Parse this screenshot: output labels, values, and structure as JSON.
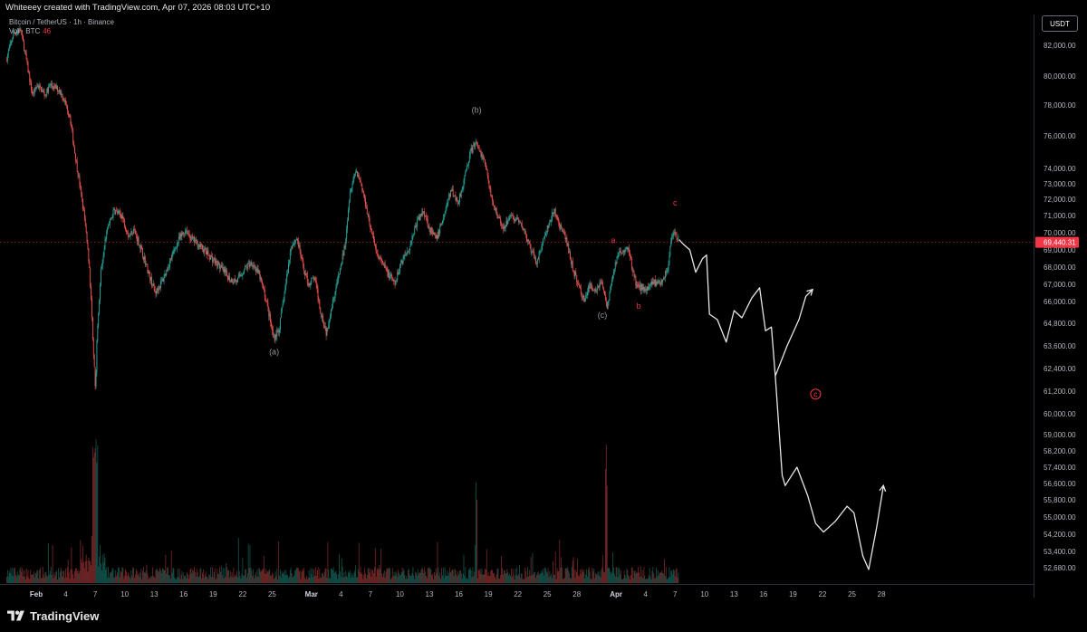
{
  "header": {
    "credit": "Whiteeey created with TradingView.com, Apr 07, 2026 08:03 UTC+10",
    "symbol": "Bitcoin / TetherUS · 1h · Binance",
    "volume_label": "Vol · BTC",
    "volume_value": "46",
    "currency": "USDT"
  },
  "footer": {
    "brand": "TradingView"
  },
  "colors": {
    "up": "#26a69a",
    "down": "#ef5350",
    "price_line": "#f23645",
    "projection": "#e6e6e6",
    "wave_gray": "#9598a1",
    "wave_red": "#f23645"
  },
  "chart_data": {
    "type": "candlestick",
    "interval": "1h",
    "symbol": "BTCUSDT",
    "exchange": "Binance",
    "current_price": 69440.31,
    "current_price_label": "69,440.31",
    "y_axis": {
      "ticks": [
        {
          "value": 82000,
          "label": "82,000.00"
        },
        {
          "value": 80000,
          "label": "80,000.00"
        },
        {
          "value": 78000,
          "label": "78,000.00"
        },
        {
          "value": 76000,
          "label": "76,000.00"
        },
        {
          "value": 74000,
          "label": "74,000.00"
        },
        {
          "value": 73000,
          "label": "73,000.00"
        },
        {
          "value": 72000,
          "label": "72,000.00"
        },
        {
          "value": 71000,
          "label": "71,000.00"
        },
        {
          "value": 70000,
          "label": "70,000.00"
        },
        {
          "value": 69000,
          "label": "69,000.00"
        },
        {
          "value": 68000,
          "label": "68,000.00"
        },
        {
          "value": 67000,
          "label": "67,000.00"
        },
        {
          "value": 66000,
          "label": "66,000.00"
        },
        {
          "value": 64800,
          "label": "64,800.00"
        },
        {
          "value": 63600,
          "label": "63,600.00"
        },
        {
          "value": 62400,
          "label": "62,400.00"
        },
        {
          "value": 61200,
          "label": "61,200.00"
        },
        {
          "value": 60000,
          "label": "60,000.00"
        },
        {
          "value": 59000,
          "label": "59,000.00"
        },
        {
          "value": 58200,
          "label": "58,200.00"
        },
        {
          "value": 57400,
          "label": "57,400.00"
        },
        {
          "value": 56600,
          "label": "56,600.00"
        },
        {
          "value": 55800,
          "label": "55,800.00"
        },
        {
          "value": 55000,
          "label": "55,000.00"
        },
        {
          "value": 54200,
          "label": "54,200.00"
        },
        {
          "value": 53400,
          "label": "53,400.00"
        },
        {
          "value": 52680,
          "label": "52,680.00"
        }
      ]
    },
    "x_axis": {
      "ticks": [
        {
          "day": 0,
          "label": "Feb",
          "major": true
        },
        {
          "day": 3,
          "label": "4"
        },
        {
          "day": 6,
          "label": "7"
        },
        {
          "day": 9,
          "label": "10"
        },
        {
          "day": 12,
          "label": "13"
        },
        {
          "day": 15,
          "label": "16"
        },
        {
          "day": 18,
          "label": "19"
        },
        {
          "day": 21,
          "label": "22"
        },
        {
          "day": 24,
          "label": "25"
        },
        {
          "day": 28,
          "label": "Mar",
          "major": true
        },
        {
          "day": 31,
          "label": "4"
        },
        {
          "day": 34,
          "label": "7"
        },
        {
          "day": 37,
          "label": "10"
        },
        {
          "day": 40,
          "label": "13"
        },
        {
          "day": 43,
          "label": "16"
        },
        {
          "day": 46,
          "label": "19"
        },
        {
          "day": 49,
          "label": "22"
        },
        {
          "day": 52,
          "label": "25"
        },
        {
          "day": 55,
          "label": "28"
        },
        {
          "day": 59,
          "label": "Apr",
          "major": true
        },
        {
          "day": 62,
          "label": "4"
        },
        {
          "day": 65,
          "label": "7"
        },
        {
          "day": 68,
          "label": "10"
        },
        {
          "day": 71,
          "label": "13"
        },
        {
          "day": 74,
          "label": "16"
        },
        {
          "day": 77,
          "label": "19"
        },
        {
          "day": 80,
          "label": "22"
        },
        {
          "day": 83,
          "label": "25"
        },
        {
          "day": 86,
          "label": "28"
        }
      ]
    },
    "price_path": [
      [
        -3,
        81000
      ],
      [
        -2.2,
        82800
      ],
      [
        -1.5,
        83000
      ],
      [
        -1,
        81300
      ],
      [
        -0.3,
        78700
      ],
      [
        0.2,
        79400
      ],
      [
        1,
        78700
      ],
      [
        1.5,
        79400
      ],
      [
        2.5,
        79000
      ],
      [
        3,
        78200
      ],
      [
        3.5,
        77300
      ],
      [
        4,
        75000
      ],
      [
        4.5,
        73000
      ],
      [
        5,
        70800
      ],
      [
        5.5,
        68000
      ],
      [
        5.8,
        64500
      ],
      [
        6.1,
        61200
      ],
      [
        6.3,
        64500
      ],
      [
        6.7,
        68000
      ],
      [
        7.2,
        70000
      ],
      [
        8,
        71300
      ],
      [
        8.8,
        71000
      ],
      [
        9.5,
        69800
      ],
      [
        10,
        70200
      ],
      [
        10.8,
        69000
      ],
      [
        11.6,
        67500
      ],
      [
        12.2,
        66500
      ],
      [
        13,
        67300
      ],
      [
        13.8,
        68500
      ],
      [
        14.5,
        69500
      ],
      [
        15.3,
        70200
      ],
      [
        15.8,
        69700
      ],
      [
        16.8,
        69200
      ],
      [
        17.8,
        68600
      ],
      [
        18.8,
        68000
      ],
      [
        19.8,
        67300
      ],
      [
        20.5,
        67200
      ],
      [
        21.3,
        67900
      ],
      [
        22,
        68300
      ],
      [
        22.8,
        67500
      ],
      [
        23.6,
        65800
      ],
      [
        24.2,
        64000
      ],
      [
        24.8,
        64500
      ],
      [
        25.4,
        66700
      ],
      [
        26,
        69200
      ],
      [
        26.6,
        69700
      ],
      [
        27.2,
        68100
      ],
      [
        27.8,
        67000
      ],
      [
        28.4,
        67400
      ],
      [
        29,
        65500
      ],
      [
        29.6,
        64300
      ],
      [
        30.2,
        65900
      ],
      [
        30.8,
        67300
      ],
      [
        31.5,
        69300
      ],
      [
        32,
        72500
      ],
      [
        32.6,
        73900
      ],
      [
        33,
        73300
      ],
      [
        33.5,
        72000
      ],
      [
        34.2,
        70000
      ],
      [
        34.8,
        68700
      ],
      [
        35.4,
        68100
      ],
      [
        36,
        67500
      ],
      [
        36.6,
        67000
      ],
      [
        37.2,
        68300
      ],
      [
        38,
        69100
      ],
      [
        38.8,
        70600
      ],
      [
        39.5,
        71300
      ],
      [
        40.2,
        70100
      ],
      [
        40.8,
        69600
      ],
      [
        41.6,
        71100
      ],
      [
        42.3,
        72600
      ],
      [
        43,
        71800
      ],
      [
        43.6,
        73200
      ],
      [
        44.2,
        74900
      ],
      [
        44.8,
        75600
      ],
      [
        45.3,
        74900
      ],
      [
        45.8,
        74300
      ],
      [
        46.3,
        72300
      ],
      [
        47,
        71000
      ],
      [
        47.6,
        70300
      ],
      [
        48.3,
        71000
      ],
      [
        49,
        70700
      ],
      [
        49.7,
        70200
      ],
      [
        50.3,
        69100
      ],
      [
        51,
        68300
      ],
      [
        51.6,
        69400
      ],
      [
        52.2,
        70400
      ],
      [
        52.8,
        71300
      ],
      [
        53.4,
        70300
      ],
      [
        54,
        69600
      ],
      [
        54.6,
        68100
      ],
      [
        55.2,
        67000
      ],
      [
        55.8,
        66100
      ],
      [
        56.4,
        66900
      ],
      [
        57,
        66700
      ],
      [
        57.6,
        67200
      ],
      [
        58.2,
        65700
      ],
      [
        58.6,
        67200
      ],
      [
        59.2,
        68600
      ],
      [
        59.7,
        68900
      ],
      [
        60.2,
        69200
      ],
      [
        60.6,
        68300
      ],
      [
        61.1,
        67000
      ],
      [
        61.6,
        66800
      ],
      [
        62.2,
        66800
      ],
      [
        62.8,
        67200
      ],
      [
        63.3,
        67000
      ],
      [
        63.8,
        67300
      ],
      [
        64.3,
        67800
      ],
      [
        64.7,
        69500
      ],
      [
        65,
        69900
      ],
      [
        65.4,
        69600
      ]
    ],
    "projection": [
      [
        65.4,
        69600
      ],
      [
        65.9,
        69300
      ],
      [
        66.5,
        69000
      ],
      [
        67.1,
        67700
      ],
      [
        67.8,
        68500
      ],
      [
        68.2,
        68700
      ],
      [
        68.5,
        65300
      ],
      [
        69.3,
        65000
      ],
      [
        70.2,
        63800
      ],
      [
        71,
        65500
      ],
      [
        71.8,
        65100
      ],
      [
        72.8,
        66200
      ],
      [
        73.6,
        66800
      ],
      [
        74.2,
        64400
      ],
      [
        74.8,
        64600
      ],
      [
        75.2,
        62000
      ],
      [
        76.4,
        63600
      ],
      [
        77.6,
        65000
      ],
      [
        78.3,
        66300
      ],
      [
        79,
        66700
      ]
    ],
    "projection_secondary": [
      [
        75.2,
        62000
      ],
      [
        75.9,
        57000
      ],
      [
        76.2,
        56500
      ],
      [
        77.4,
        57400
      ],
      [
        78.5,
        56000
      ],
      [
        79.3,
        54700
      ],
      [
        80.1,
        54300
      ],
      [
        81.3,
        54800
      ],
      [
        82.5,
        55500
      ],
      [
        83.2,
        55200
      ],
      [
        84.1,
        53200
      ],
      [
        84.7,
        52600
      ],
      [
        85.5,
        54500
      ],
      [
        86.2,
        56500
      ]
    ],
    "wave_labels": [
      {
        "text": "(a)",
        "day": 24.2,
        "price": 63150,
        "color": "gray"
      },
      {
        "text": "(b)",
        "day": 44.8,
        "price": 77500,
        "color": "gray"
      },
      {
        "text": "(c)",
        "day": 57.6,
        "price": 65100,
        "color": "gray"
      },
      {
        "text": "a",
        "day": 58.7,
        "price": 69400,
        "color": "red"
      },
      {
        "text": "b",
        "day": 61.3,
        "price": 65600,
        "color": "red"
      },
      {
        "text": "c",
        "day": 65,
        "price": 71600,
        "color": "red"
      },
      {
        "text": "c",
        "day": 79.3,
        "price": 60900,
        "color": "red",
        "circled": true
      }
    ]
  }
}
